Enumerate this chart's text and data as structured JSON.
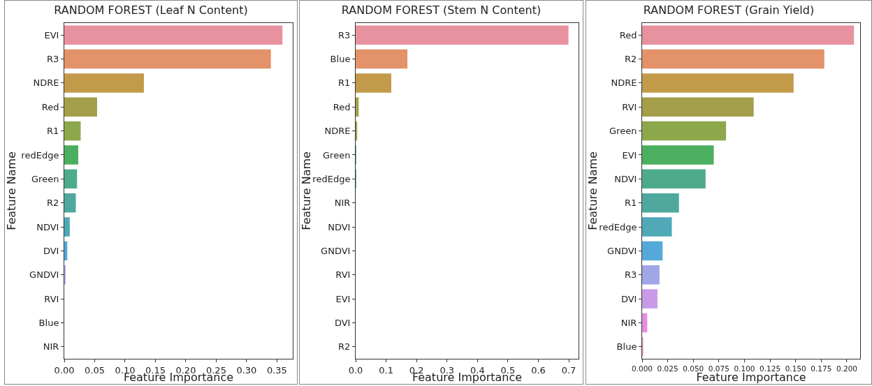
{
  "chart_data": [
    {
      "type": "bar",
      "orientation": "horizontal",
      "title": "RANDOM FOREST (Leaf N Content)",
      "xlabel": "Feature Importance",
      "ylabel": "Feature Name",
      "categories": [
        "EVI",
        "R3",
        "NDRE",
        "Red",
        "R1",
        "redEdge",
        "Green",
        "R2",
        "NDVI",
        "DVI",
        "GNDVI",
        "RVI",
        "Blue",
        "NIR"
      ],
      "values": [
        0.359,
        0.34,
        0.131,
        0.054,
        0.027,
        0.023,
        0.021,
        0.019,
        0.009,
        0.005,
        0.002,
        0,
        0,
        0
      ],
      "colors": [
        "#e8929f",
        "#e3926a",
        "#c29a4a",
        "#a59e4a",
        "#8ca84b",
        "#4caf5f",
        "#4dab8c",
        "#4ea89e",
        "#4fa9b6",
        "#55a9d9",
        "#a0a6e6",
        "#c99be6",
        "#e68ee0",
        "#ea8fc1"
      ],
      "xlim": [
        0,
        0.376
      ],
      "xticks": [
        {
          "value": 0,
          "label": "0.00"
        },
        {
          "value": 0.05,
          "label": "0.05"
        },
        {
          "value": 0.1,
          "label": "0.10"
        },
        {
          "value": 0.15,
          "label": "0.15"
        },
        {
          "value": 0.2,
          "label": "0.20"
        },
        {
          "value": 0.25,
          "label": "0.25"
        },
        {
          "value": 0.3,
          "label": "0.30"
        },
        {
          "value": 0.35,
          "label": "0.35"
        }
      ],
      "grid": false
    },
    {
      "type": "bar",
      "orientation": "horizontal",
      "title": "RANDOM FOREST (Stem N Content)",
      "xlabel": "Feature Importance",
      "ylabel": "Feature Name",
      "categories": [
        "R3",
        "Blue",
        "R1",
        "Red",
        "NDRE",
        "Green",
        "redEdge",
        "NIR",
        "NDVI",
        "GNDVI",
        "RVI",
        "EVI",
        "DVI",
        "R2"
      ],
      "values": [
        0.699,
        0.17,
        0.117,
        0.01,
        0.005,
        0.002,
        0.002,
        0,
        0,
        0,
        0,
        0,
        0,
        0
      ],
      "colors": [
        "#e8929f",
        "#e3926a",
        "#c29a4a",
        "#a59e4a",
        "#8ca84b",
        "#4caf5f",
        "#4dab8c",
        "#4ea89e",
        "#4fa9b6",
        "#55a9d9",
        "#a0a6e6",
        "#c99be6",
        "#e68ee0",
        "#ea8fc1"
      ],
      "xlim": [
        0,
        0.732
      ],
      "xticks": [
        {
          "value": 0,
          "label": "0.0"
        },
        0.1,
        0.2,
        0.3,
        0.4,
        0.5,
        0.6,
        0.7
      ],
      "grid": false
    },
    {
      "type": "bar",
      "orientation": "horizontal",
      "title": "RANDOM FOREST (Grain Yield)",
      "xlabel": "Feature Importance",
      "ylabel": "Feature Name",
      "categories": [
        "Red",
        "R2",
        "NDRE",
        "RVI",
        "Green",
        "EVI",
        "NDVI",
        "R1",
        "redEdge",
        "GNDVI",
        "R3",
        "DVI",
        "NIR",
        "Blue"
      ],
      "values": [
        0.207,
        0.178,
        0.148,
        0.109,
        0.082,
        0.07,
        0.062,
        0.036,
        0.029,
        0.02,
        0.017,
        0.015,
        0.005,
        0.001
      ],
      "colors": [
        "#e8929f",
        "#e3926a",
        "#c29a4a",
        "#a59e4a",
        "#8ca84b",
        "#4caf5f",
        "#4dab8c",
        "#4ea89e",
        "#4fa9b6",
        "#55a9d9",
        "#a0a6e6",
        "#c99be6",
        "#e68ee0",
        "#ea8fc1"
      ],
      "xlim": [
        0,
        0.213
      ],
      "xticks": [
        {
          "value": 0,
          "label": "0.000"
        },
        {
          "value": 0.025,
          "label": "0.025"
        },
        {
          "value": 0.05,
          "label": "0.050"
        },
        {
          "value": 0.075,
          "label": "0.075"
        },
        {
          "value": 0.1,
          "label": "0.100"
        },
        {
          "value": 0.125,
          "label": "0.125"
        },
        {
          "value": 0.15,
          "label": "0.150"
        },
        {
          "value": 0.175,
          "label": "0.175"
        },
        {
          "value": 0.2,
          "label": "0.200"
        }
      ],
      "grid": false
    }
  ]
}
